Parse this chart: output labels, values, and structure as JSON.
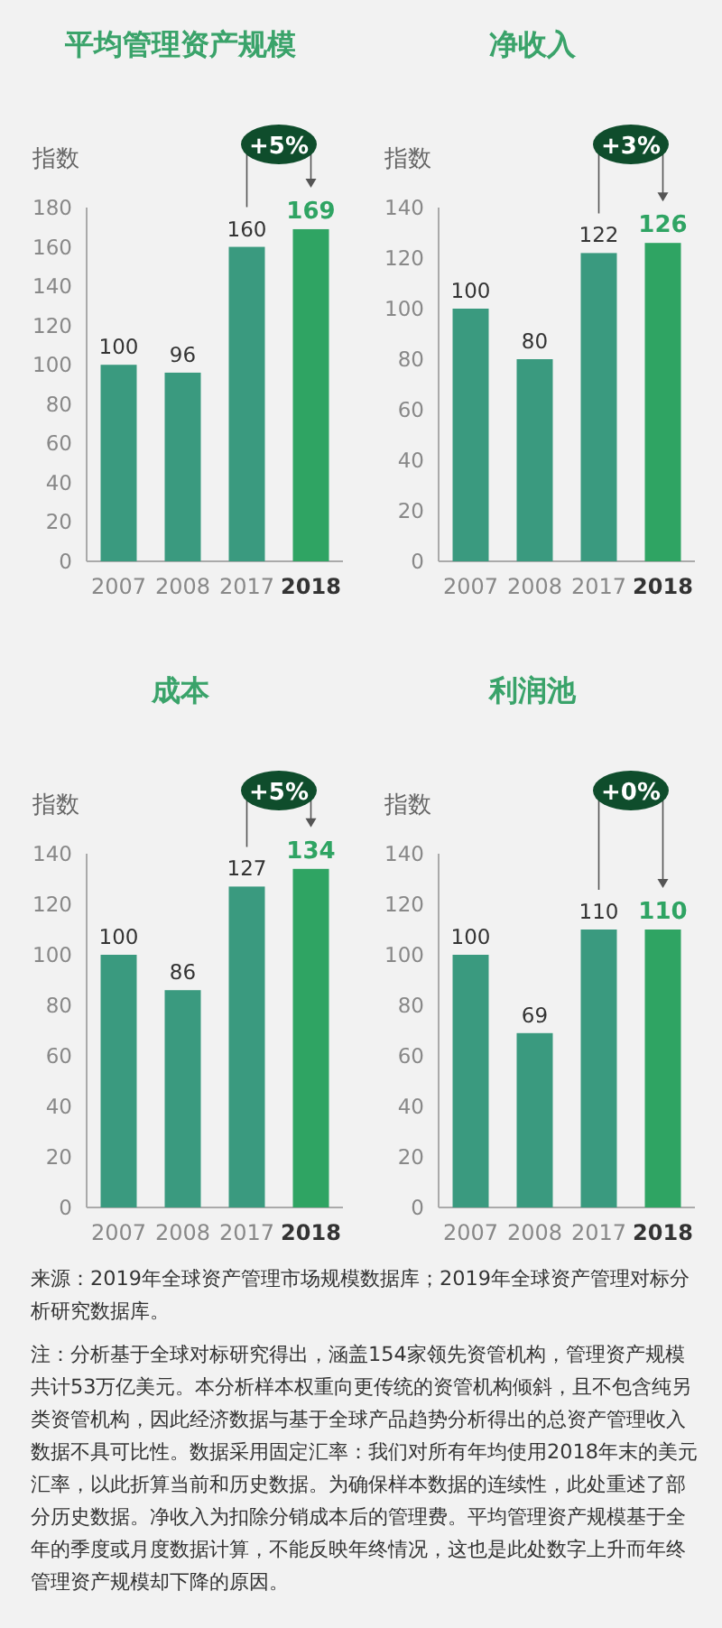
{
  "chart_data": [
    {
      "type": "bar",
      "title": "平均管理资产规模",
      "ylabel": "指数",
      "categories": [
        "2007",
        "2008",
        "2017",
        "2018"
      ],
      "values": [
        100,
        96,
        160,
        169
      ],
      "colors": [
        "#3a9a7f",
        "#3a9a7f",
        "#3a9a7f",
        "#2fa463"
      ],
      "ylim": [
        0,
        180
      ],
      "yticks": [
        0,
        20,
        40,
        60,
        80,
        100,
        120,
        140,
        160,
        180
      ],
      "data_labels": true,
      "annotations": [
        "+5%"
      ]
    },
    {
      "type": "bar",
      "title": "净收入",
      "ylabel": "指数",
      "categories": [
        "2007",
        "2008",
        "2017",
        "2018"
      ],
      "values": [
        100,
        80,
        122,
        126
      ],
      "colors": [
        "#3a9a7f",
        "#3a9a7f",
        "#3a9a7f",
        "#2fa463"
      ],
      "ylim": [
        0,
        140
      ],
      "yticks": [
        0,
        20,
        40,
        60,
        80,
        100,
        120,
        140
      ],
      "data_labels": true,
      "annotations": [
        "+3%"
      ]
    },
    {
      "type": "bar",
      "title": "成本",
      "ylabel": "指数",
      "categories": [
        "2007",
        "2008",
        "2017",
        "2018"
      ],
      "values": [
        100,
        86,
        127,
        134
      ],
      "colors": [
        "#3a9a7f",
        "#3a9a7f",
        "#3a9a7f",
        "#2fa463"
      ],
      "ylim": [
        0,
        140
      ],
      "yticks": [
        0,
        20,
        40,
        60,
        80,
        100,
        120,
        140
      ],
      "data_labels": true,
      "annotations": [
        "+5%"
      ]
    },
    {
      "type": "bar",
      "title": "利润池",
      "ylabel": "指数",
      "categories": [
        "2007",
        "2008",
        "2017",
        "2018"
      ],
      "values": [
        100,
        69,
        110,
        110
      ],
      "colors": [
        "#3a9a7f",
        "#3a9a7f",
        "#3a9a7f",
        "#2fa463"
      ],
      "ylim": [
        0,
        140
      ],
      "yticks": [
        0,
        20,
        40,
        60,
        80,
        100,
        120,
        140
      ],
      "data_labels": true,
      "annotations": [
        "+0%"
      ]
    },
    {
      "type": "other",
      "annotations": [
        "来源：2019年全球资产管理市场规模数据库；2019年全球资产管理对标分析研究数据库。",
        "注：分析基于全球对标研究得出，涵盖154家领先资管机构，管理资产规模共计53万亿美元。本分析样本权重向更传统的资管机构倾斜，且不包含纯另类资管机构，因此经济数据与基于全球产品趋势分析得出的总资产管理收入数据不具可比性。数据采用固定汇率：我们对所有年均使用2018年末的美元汇率，以此折算当前和历史数据。为确保样本数据的连续性，此处重述了部分历史数据。净收入为扣除分销成本后的管理费。平均管理资产规模基于全年的季度或月度数据计算，不能反映年终情况，这也是此处数字上升而年终管理资产规模却下降的原因。"
      ]
    }
  ]
}
